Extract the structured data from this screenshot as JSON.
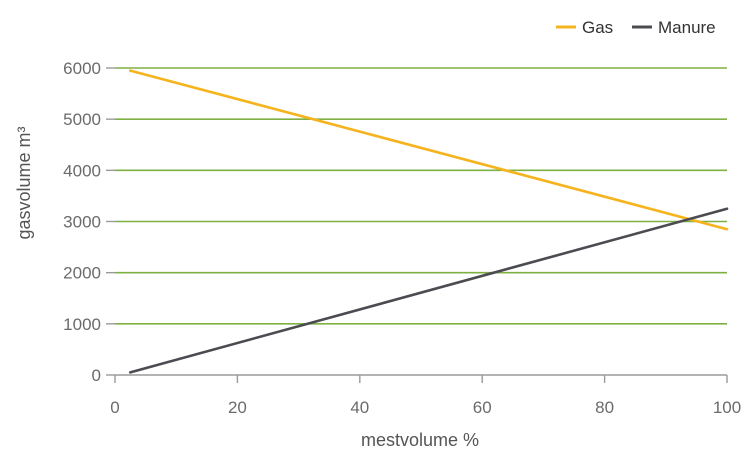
{
  "chart_data": {
    "type": "line",
    "title": "",
    "xlabel": "mestvolume %",
    "ylabel": "gasvolume m³",
    "xlim": [
      0,
      100
    ],
    "ylim": [
      0,
      6000
    ],
    "x_ticks": [
      0,
      20,
      40,
      60,
      80,
      100
    ],
    "y_ticks": [
      0,
      1000,
      2000,
      3000,
      4000,
      5000,
      6000
    ],
    "grid": "horizontal",
    "legend_position": "top-right",
    "series": [
      {
        "name": "Gas",
        "color": "#F5B41E",
        "x": [
          2.5,
          100
        ],
        "y": [
          5950,
          2850
        ]
      },
      {
        "name": "Manure",
        "color": "#4B4B52",
        "x": [
          2.5,
          100
        ],
        "y": [
          50,
          3250
        ]
      }
    ]
  },
  "colors": {
    "grid": "#7EB043",
    "axis": "#9a9a9a",
    "tick_text": "#6b6b6b",
    "label_text": "#555555"
  }
}
